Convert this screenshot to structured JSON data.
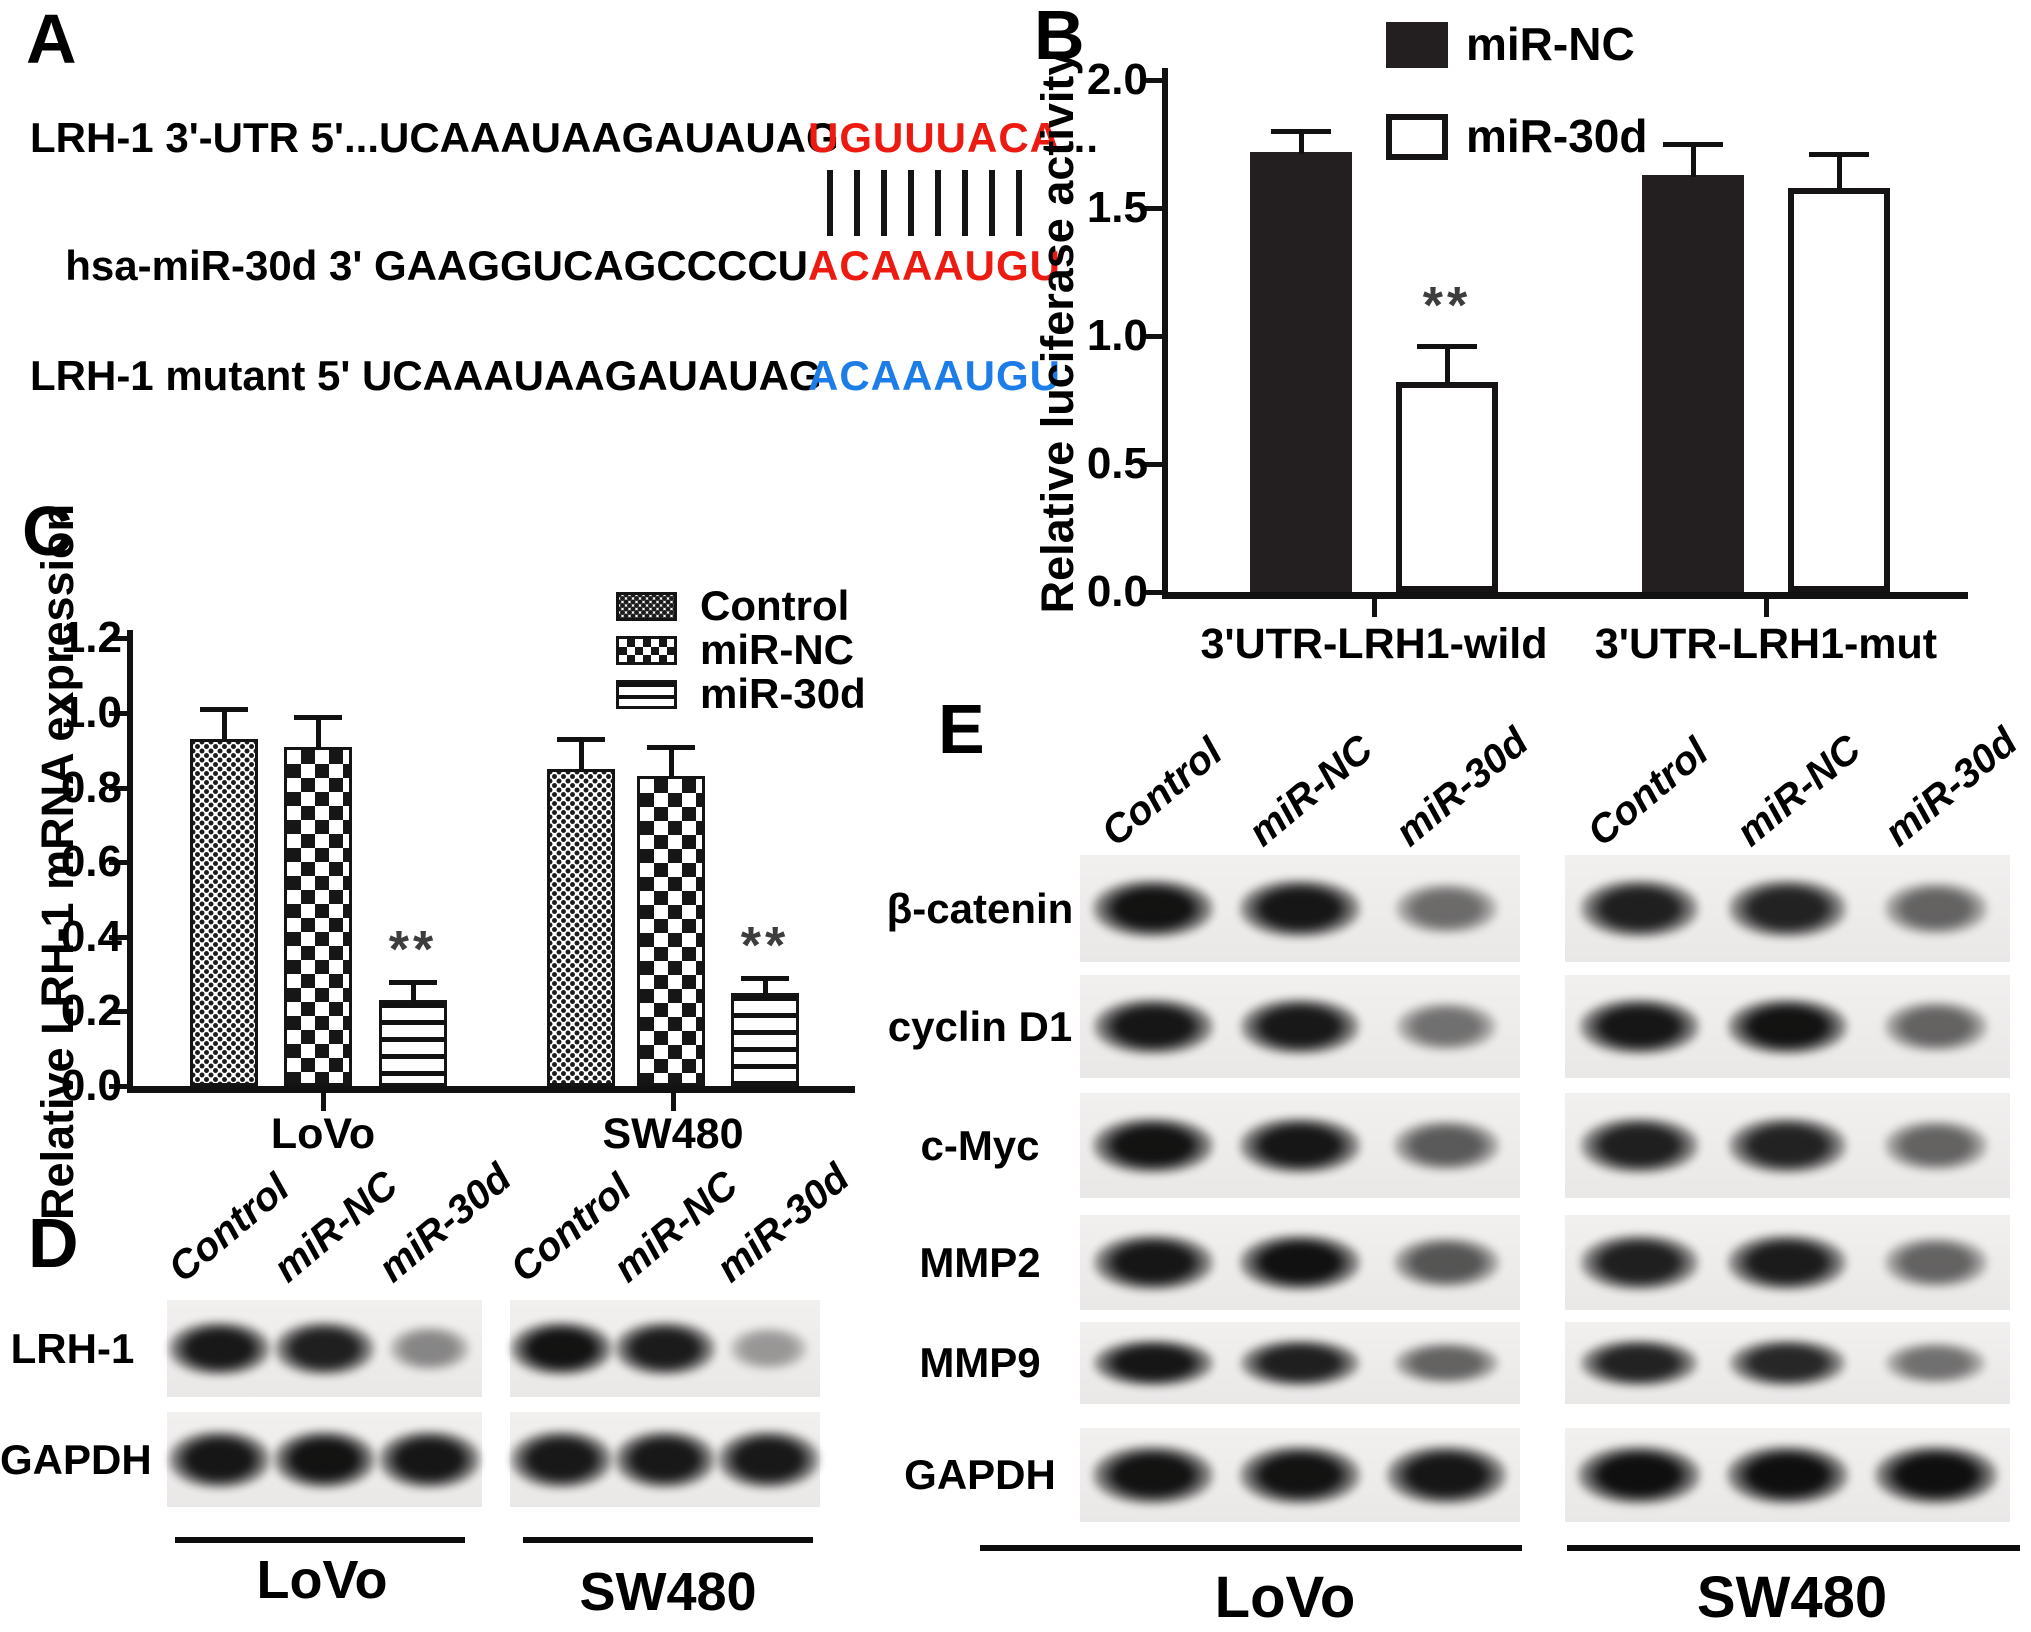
{
  "colors": {
    "sequence_red": "#ed1a11",
    "sequence_blue": "#1d7de8",
    "bar_black": "#231f20",
    "axis_black": "#111111"
  },
  "panels": {
    "A": {
      "label": "A"
    },
    "B": {
      "label": "B"
    },
    "C": {
      "label": "C"
    },
    "D": {
      "label": "D"
    },
    "E": {
      "label": "E"
    }
  },
  "panelA": {
    "pairing_count": 8,
    "sequences": [
      {
        "name": "LRH-1 3'-UTR",
        "black": "LRH-1 3'-UTR 5'...UCAAAUAAGAUAUAG",
        "highlight": "UGUUUACA",
        "suffix": "...",
        "highlight_color": "red"
      },
      {
        "name": "hsa-miR-30d",
        "black": "hsa-miR-30d 3' GAAGGUCAGCCCCU",
        "highlight": "ACAAAUGU",
        "suffix": "",
        "highlight_color": "red"
      },
      {
        "name": "LRH-1 mutant",
        "black": "LRH-1 mutant 5' UCAAAUAAGAUAUAG",
        "highlight": "ACAAAUGU",
        "suffix": "",
        "highlight_color": "blue"
      }
    ]
  },
  "chart_data": [
    {
      "panel": "B",
      "type": "bar",
      "title": "",
      "ylabel": "Relative luciferase activity",
      "xlabel": "",
      "categories": [
        "3'UTR-LRH1-wild",
        "3'UTR-LRH1-mut"
      ],
      "series": [
        {
          "name": "miR-NC",
          "fill": "black",
          "values": [
            1.72,
            1.63
          ],
          "errors": [
            0.08,
            0.12
          ]
        },
        {
          "name": "miR-30d",
          "fill": "white",
          "values": [
            0.82,
            1.58
          ],
          "errors": [
            0.14,
            0.13
          ]
        }
      ],
      "significance": [
        {
          "category": 0,
          "series": 1,
          "text": "**"
        }
      ],
      "ylim": [
        0,
        2.0
      ],
      "yticks": [
        0.0,
        0.5,
        1.0,
        1.5,
        2.0
      ],
      "grid": false,
      "legend_position": "top-center"
    },
    {
      "panel": "C",
      "type": "bar",
      "title": "",
      "ylabel": "Relative LRH-1 mRNA expression",
      "xlabel": "",
      "categories": [
        "LoVo",
        "SW480"
      ],
      "series": [
        {
          "name": "Control",
          "pattern": "dots",
          "values": [
            0.93,
            0.85
          ],
          "errors": [
            0.08,
            0.08
          ]
        },
        {
          "name": "miR-NC",
          "pattern": "checker",
          "values": [
            0.91,
            0.83
          ],
          "errors": [
            0.08,
            0.08
          ]
        },
        {
          "name": "miR-30d",
          "pattern": "hlines",
          "values": [
            0.23,
            0.25
          ],
          "errors": [
            0.05,
            0.04
          ]
        }
      ],
      "significance": [
        {
          "category": 0,
          "series": 2,
          "text": "**"
        },
        {
          "category": 1,
          "series": 2,
          "text": "**"
        }
      ],
      "ylim": [
        0,
        1.2
      ],
      "yticks": [
        0.0,
        0.2,
        0.4,
        0.6,
        0.8,
        1.0,
        1.2
      ],
      "grid": false,
      "legend_position": "top-right"
    }
  ],
  "panelD": {
    "col_labels": [
      "Control",
      "miR-NC",
      "miR-30d"
    ],
    "group_labels": [
      "LoVo",
      "SW480"
    ],
    "rows": [
      {
        "name": "LRH-1",
        "groups": [
          [
            0.92,
            0.88,
            0.3
          ],
          [
            0.95,
            0.9,
            0.2
          ]
        ]
      },
      {
        "name": "GAPDH",
        "groups": [
          [
            0.93,
            0.95,
            0.93
          ],
          [
            0.92,
            0.92,
            0.92
          ]
        ]
      }
    ]
  },
  "panelE": {
    "col_labels": [
      "Control",
      "miR-NC",
      "miR-30d"
    ],
    "group_labels": [
      "LoVo",
      "SW480"
    ],
    "rows": [
      {
        "name": "β-catenin",
        "groups": [
          [
            0.95,
            0.93,
            0.45
          ],
          [
            0.88,
            0.86,
            0.5
          ]
        ]
      },
      {
        "name": "cyclin D1",
        "groups": [
          [
            0.93,
            0.92,
            0.42
          ],
          [
            0.93,
            0.95,
            0.5
          ]
        ]
      },
      {
        "name": "c-Myc",
        "groups": [
          [
            0.95,
            0.93,
            0.55
          ],
          [
            0.88,
            0.86,
            0.5
          ]
        ]
      },
      {
        "name": "MMP2",
        "groups": [
          [
            0.93,
            0.96,
            0.58
          ],
          [
            0.88,
            0.9,
            0.5
          ]
        ]
      },
      {
        "name": "MMP9",
        "groups": [
          [
            0.93,
            0.88,
            0.5
          ],
          [
            0.86,
            0.84,
            0.42
          ]
        ]
      },
      {
        "name": "GAPDH",
        "groups": [
          [
            0.95,
            0.95,
            0.93
          ],
          [
            1,
            1,
            1
          ]
        ]
      }
    ]
  }
}
